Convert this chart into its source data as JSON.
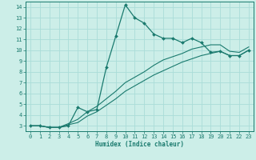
{
  "title": "",
  "xlabel": "Humidex (Indice chaleur)",
  "bg_color": "#cceee8",
  "grid_color": "#aaddd8",
  "line_color": "#1a7a6e",
  "xlim": [
    -0.5,
    23.5
  ],
  "ylim": [
    2.5,
    14.5
  ],
  "xticks": [
    0,
    1,
    2,
    3,
    4,
    5,
    6,
    7,
    8,
    9,
    10,
    11,
    12,
    13,
    14,
    15,
    16,
    17,
    18,
    19,
    20,
    21,
    22,
    23
  ],
  "yticks": [
    3,
    4,
    5,
    6,
    7,
    8,
    9,
    10,
    11,
    12,
    13,
    14
  ],
  "series1_x": [
    0,
    1,
    2,
    3,
    4,
    5,
    6,
    7,
    8,
    9,
    10,
    11,
    12,
    13,
    14,
    15,
    16,
    17,
    18,
    19,
    20,
    21,
    22,
    23
  ],
  "series1_y": [
    3.0,
    3.0,
    2.85,
    2.85,
    3.0,
    4.7,
    4.3,
    4.5,
    8.4,
    11.3,
    14.2,
    13.0,
    12.5,
    11.5,
    11.1,
    11.1,
    10.7,
    11.1,
    10.7,
    9.8,
    9.9,
    9.5,
    9.5,
    10.0
  ],
  "series2_x": [
    0,
    1,
    2,
    3,
    4,
    5,
    6,
    7,
    8,
    9,
    10,
    11,
    12,
    13,
    14,
    15,
    16,
    17,
    18,
    19,
    20,
    21,
    22,
    23
  ],
  "series2_y": [
    3.0,
    3.0,
    2.85,
    2.85,
    3.1,
    3.3,
    3.9,
    4.3,
    4.9,
    5.5,
    6.2,
    6.7,
    7.2,
    7.7,
    8.1,
    8.5,
    8.9,
    9.2,
    9.5,
    9.7,
    9.9,
    9.5,
    9.5,
    10.0
  ],
  "series3_x": [
    0,
    1,
    2,
    3,
    4,
    5,
    6,
    7,
    8,
    9,
    10,
    11,
    12,
    13,
    14,
    15,
    16,
    17,
    18,
    19,
    20,
    21,
    22,
    23
  ],
  "series3_y": [
    3.0,
    3.0,
    2.85,
    2.85,
    3.2,
    3.6,
    4.3,
    4.8,
    5.5,
    6.2,
    7.0,
    7.5,
    8.0,
    8.6,
    9.1,
    9.4,
    9.7,
    10.1,
    10.3,
    10.5,
    10.5,
    9.9,
    9.8,
    10.3
  ],
  "tick_fontsize": 5.0,
  "xlabel_fontsize": 5.5
}
